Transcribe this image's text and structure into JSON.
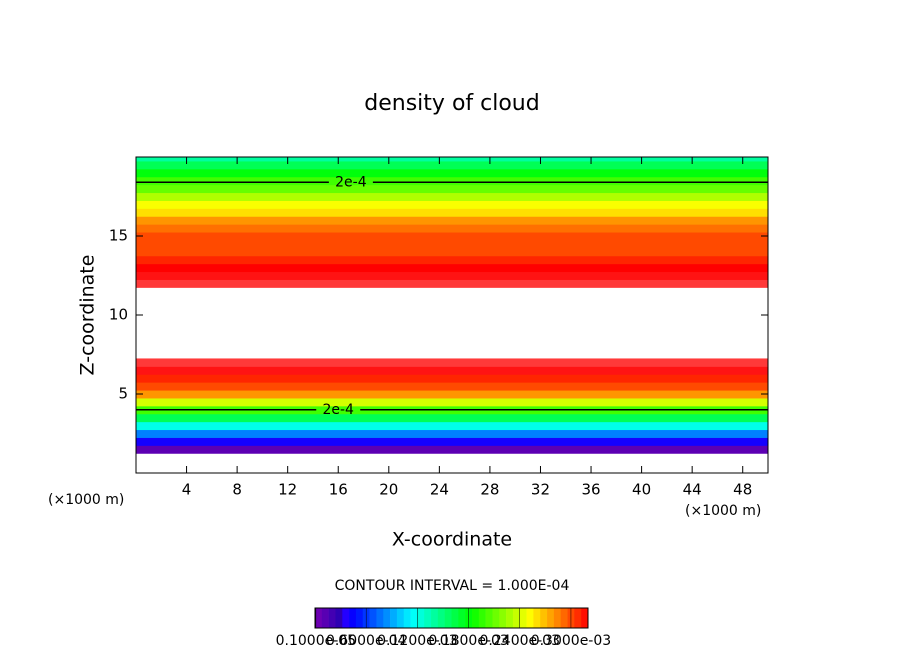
{
  "chart_data": {
    "type": "contour",
    "title": "density of cloud",
    "xlabel": "X-coordinate",
    "ylabel": "Z-coordinate",
    "x_unit": "(×1000 m)",
    "note": "CONTOUR INTERVAL = 1.000E-04",
    "xlim": [
      0,
      50
    ],
    "ylim": [
      0,
      20
    ],
    "xticks": [
      4,
      8,
      12,
      16,
      20,
      24,
      28,
      32,
      36,
      40,
      44,
      48
    ],
    "yticks": [
      5,
      10,
      15
    ],
    "z": [
      1.5,
      2,
      2.5,
      3,
      3.5,
      4,
      4.5,
      5,
      5.5,
      6,
      6.5,
      7,
      7.5,
      8,
      8.5,
      9,
      9.5,
      10,
      10.5,
      11,
      11.5,
      12,
      12.5,
      13,
      13.5,
      14,
      14.5,
      15,
      15.5,
      16,
      16.5,
      17,
      17.5,
      18,
      18.5,
      19,
      19.5,
      20
    ],
    "values": [
      1e-05,
      4e-05,
      8e-05,
      0.00012,
      0.00016,
      0.0002,
      0.00024,
      0.00028,
      0.0003,
      0.00031,
      0.00033,
      0.00035,
      null,
      null,
      null,
      null,
      null,
      null,
      null,
      null,
      null,
      0.00035,
      0.00033,
      0.00032,
      0.00031,
      0.0003,
      0.0003,
      0.0003,
      0.00029,
      0.00028,
      0.00026,
      0.00025,
      0.00023,
      0.00021,
      0.0002,
      0.00018,
      0.00016,
      0.00014
    ],
    "contour_lines": [
      {
        "z": 18.4,
        "label": "2e-4",
        "label_x": 17
      },
      {
        "z": 4,
        "label": "2e-4",
        "label_x": 16
      }
    ],
    "colorbar_lim": [
      0,
      0.00032
    ],
    "colorbar_ticks": [
      {
        "value": 1e-06,
        "label": "0.1000e-05"
      },
      {
        "value": 6e-05,
        "label": "0.6000e-04"
      },
      {
        "value": 0.00012,
        "label": "0.1200e-03"
      },
      {
        "value": 0.00018,
        "label": "0.1800e-03"
      },
      {
        "value": 0.00024,
        "label": "0.2400e-03"
      },
      {
        "value": 0.0003,
        "label": "0.3000e-03"
      }
    ]
  }
}
